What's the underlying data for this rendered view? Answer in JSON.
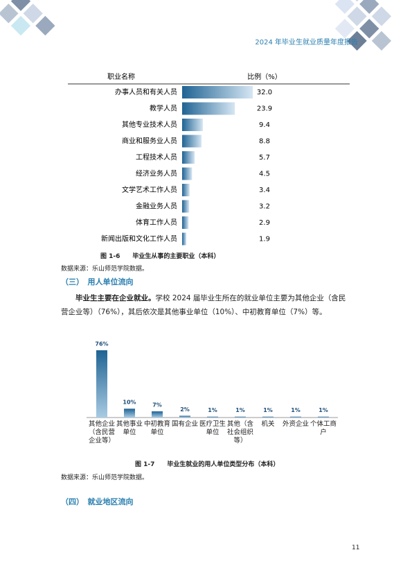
{
  "header": {
    "title": "2024 年毕业生就业质量年度报告"
  },
  "chart_data": [
    {
      "type": "hbar",
      "column_headers": [
        "职业名称",
        "比例（%）"
      ],
      "categories": [
        "办事人员和有关人员",
        "教学人员",
        "其他专业技术人员",
        "商业和服务业人员",
        "工程技术人员",
        "经济业务人员",
        "文学艺术工作人员",
        "金融业务人员",
        "体育工作人员",
        "新闻出版和文化工作人员"
      ],
      "values": [
        32.0,
        23.9,
        9.4,
        8.8,
        5.7,
        4.5,
        3.4,
        3.2,
        2.9,
        1.9
      ],
      "value_labels": [
        "32.0",
        "23.9",
        "9.4",
        "8.8",
        "5.7",
        "4.5",
        "3.4",
        "3.2",
        "2.9",
        "1.9"
      ],
      "color": "#1f6393"
    },
    {
      "type": "bar",
      "categories": [
        "其他企业（含民营企业等）",
        "其他事业单位",
        "中初教育单位",
        "国有企业",
        "医疗卫生单位",
        "其他（含社会组织等）",
        "机关",
        "外资企业",
        "个体工商户"
      ],
      "values": [
        76,
        10,
        7,
        2,
        1,
        1,
        1,
        1,
        1
      ],
      "value_labels": [
        "76%",
        "10%",
        "7%",
        "2%",
        "1%",
        "1%",
        "1%",
        "1%",
        "1%"
      ],
      "color": "#1f6393"
    }
  ],
  "figure_1": {
    "caption": "图 1-6　　毕业生从事的主要职业（本科）",
    "source": "数据来源：乐山师范学院数据。"
  },
  "section_3": {
    "heading": "（三）　用人单位流向",
    "lead": "毕业生主要在企业就业。",
    "text": "学校 2024 届毕业生所在的就业单位主要为其他企业（含民营企业等）（76%），其后依次是其他事业单位（10%）、中初教育单位（7%）等。"
  },
  "figure_2": {
    "caption": "图 1-7　　毕业生就业的用人单位类型分布（本科）",
    "source": "数据来源：乐山师范学院数据。"
  },
  "section_4": {
    "heading": "（四）　就业地区流向"
  },
  "page_number": "11"
}
